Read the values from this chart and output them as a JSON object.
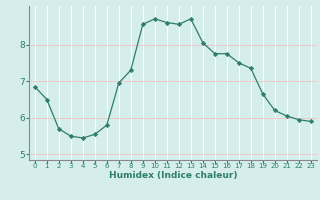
{
  "x": [
    0,
    1,
    2,
    3,
    4,
    5,
    6,
    7,
    8,
    9,
    10,
    11,
    12,
    13,
    14,
    15,
    16,
    17,
    18,
    19,
    20,
    21,
    22,
    23
  ],
  "y": [
    6.85,
    6.5,
    5.7,
    5.5,
    5.45,
    5.55,
    5.8,
    6.95,
    7.3,
    8.55,
    8.7,
    8.6,
    8.55,
    8.7,
    8.05,
    7.75,
    7.75,
    7.5,
    7.35,
    6.65,
    6.2,
    6.05,
    5.95,
    5.9
  ],
  "line_color": "#2e7d6e",
  "marker": "D",
  "marker_size": 2.2,
  "bg_color": "#d5eeec",
  "grid_color": "#ffffff",
  "grid_red_color": "#f0c8c8",
  "xlabel": "Humidex (Indice chaleur)",
  "xlim": [
    -0.5,
    23.5
  ],
  "ylim": [
    4.85,
    9.05
  ],
  "yticks": [
    5,
    6,
    7,
    8
  ],
  "xticks": [
    0,
    1,
    2,
    3,
    4,
    5,
    6,
    7,
    8,
    9,
    10,
    11,
    12,
    13,
    14,
    15,
    16,
    17,
    18,
    19,
    20,
    21,
    22,
    23
  ],
  "spine_color": "#888888",
  "tick_color": "#2e7d6e",
  "label_color": "#2e7d6e"
}
